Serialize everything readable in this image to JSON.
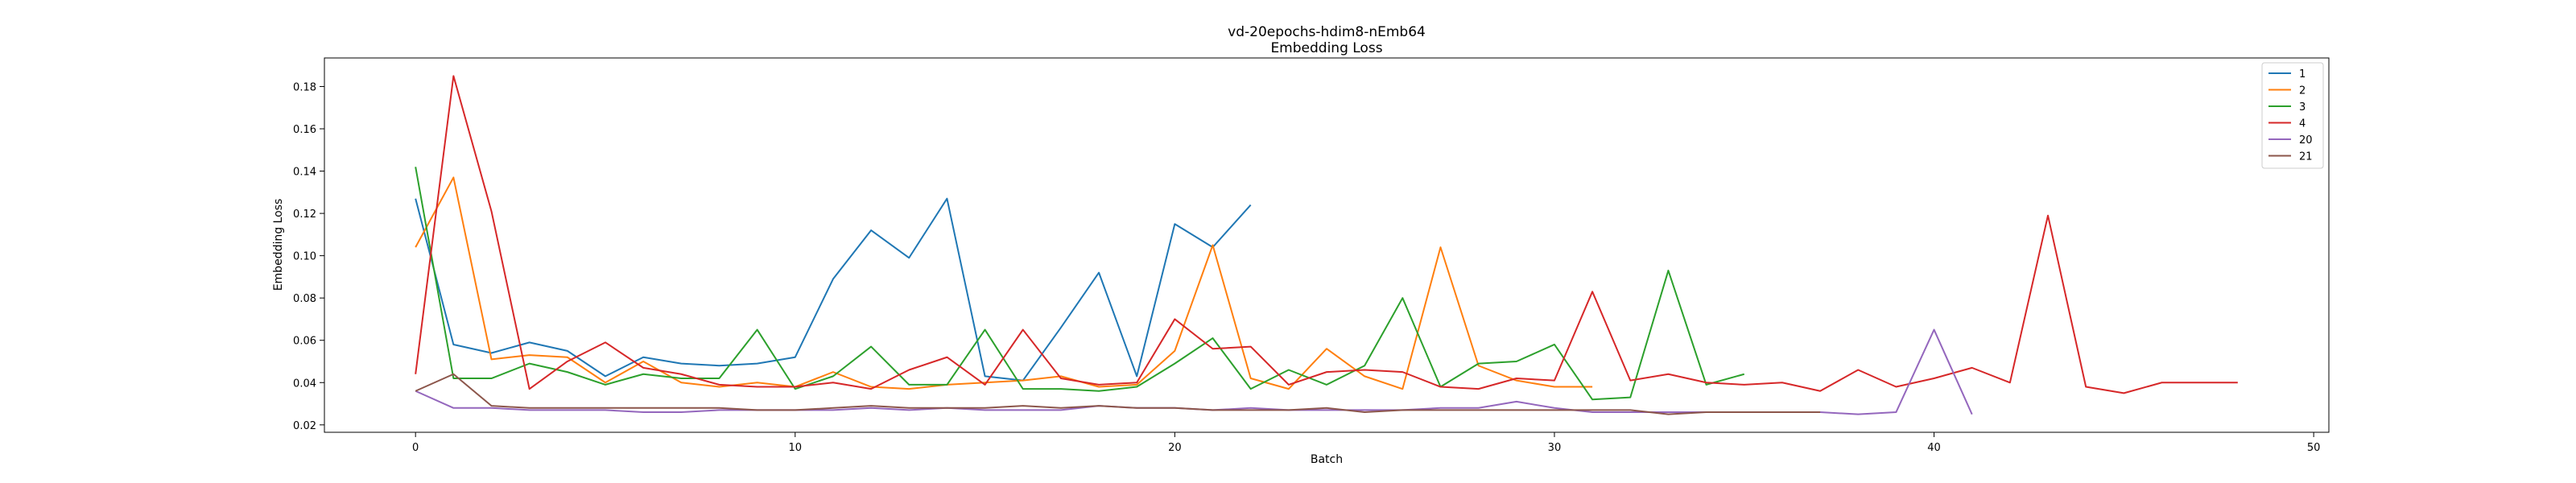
{
  "chart_data": {
    "type": "line",
    "title": "vd-20epochs-hdim8-nEmb64",
    "subtitle": "Embedding Loss",
    "xlabel": "Batch",
    "ylabel": "Embedding Loss",
    "xlim": [
      -2.4,
      50.4
    ],
    "ylim": [
      0.0165,
      0.1935
    ],
    "xticks": [
      0,
      10,
      20,
      30,
      40,
      50
    ],
    "yticks": [
      0.02,
      0.04,
      0.06,
      0.08,
      0.1,
      0.12,
      0.14,
      0.16,
      0.18
    ],
    "ytick_labels": [
      "0.02",
      "0.04",
      "0.06",
      "0.08",
      "0.10",
      "0.12",
      "0.14",
      "0.16",
      "0.18"
    ],
    "grid": false,
    "legend": "top-right",
    "series": [
      {
        "name": "1",
        "color": "#1f77b4",
        "values": [
          0.127,
          0.058,
          0.054,
          0.059,
          0.055,
          0.043,
          0.052,
          0.049,
          0.048,
          0.049,
          0.052,
          0.089,
          0.112,
          0.099,
          0.127,
          0.043,
          0.041,
          0.066,
          0.092,
          0.043,
          0.115,
          0.104,
          0.124
        ]
      },
      {
        "name": "2",
        "color": "#ff7f0e",
        "values": [
          0.104,
          0.137,
          0.051,
          0.053,
          0.052,
          0.04,
          0.05,
          0.04,
          0.038,
          0.04,
          0.038,
          0.045,
          0.038,
          0.037,
          0.039,
          0.04,
          0.041,
          0.043,
          0.038,
          0.039,
          0.055,
          0.105,
          0.042,
          0.037,
          0.056,
          0.043,
          0.037,
          0.104,
          0.048,
          0.041,
          0.038,
          0.038
        ]
      },
      {
        "name": "3",
        "color": "#2ca02c",
        "values": [
          0.142,
          0.042,
          0.042,
          0.049,
          0.045,
          0.039,
          0.044,
          0.042,
          0.042,
          0.065,
          0.037,
          0.043,
          0.057,
          0.039,
          0.039,
          0.065,
          0.037,
          0.037,
          0.036,
          0.038,
          0.049,
          0.061,
          0.037,
          0.046,
          0.039,
          0.048,
          0.08,
          0.038,
          0.049,
          0.05,
          0.058,
          0.032,
          0.033,
          0.093,
          0.039,
          0.044
        ]
      },
      {
        "name": "4",
        "color": "#d62728",
        "values": [
          0.044,
          0.185,
          0.121,
          0.037,
          0.05,
          0.059,
          0.047,
          0.044,
          0.039,
          0.038,
          0.038,
          0.04,
          0.037,
          0.046,
          0.052,
          0.039,
          0.065,
          0.042,
          0.039,
          0.04,
          0.07,
          0.056,
          0.057,
          0.039,
          0.045,
          0.046,
          0.045,
          0.038,
          0.037,
          0.042,
          0.041,
          0.083,
          0.041,
          0.044,
          0.04,
          0.039,
          0.04,
          0.036,
          0.046,
          0.038,
          0.042,
          0.047,
          0.04,
          0.119,
          0.038,
          0.035,
          0.04,
          0.04,
          0.04
        ]
      },
      {
        "name": "20",
        "color": "#9467bd",
        "values": [
          0.036,
          0.028,
          0.028,
          0.027,
          0.027,
          0.027,
          0.026,
          0.026,
          0.027,
          0.027,
          0.027,
          0.027,
          0.028,
          0.027,
          0.028,
          0.027,
          0.027,
          0.027,
          0.029,
          0.028,
          0.028,
          0.027,
          0.028,
          0.027,
          0.027,
          0.027,
          0.027,
          0.028,
          0.028,
          0.031,
          0.028,
          0.026,
          0.026,
          0.026,
          0.026,
          0.026,
          0.026,
          0.026,
          0.025,
          0.026,
          0.065,
          0.025
        ]
      },
      {
        "name": "21",
        "color": "#8c564b",
        "values": [
          0.036,
          0.044,
          0.029,
          0.028,
          0.028,
          0.028,
          0.028,
          0.028,
          0.028,
          0.027,
          0.027,
          0.028,
          0.029,
          0.028,
          0.028,
          0.028,
          0.029,
          0.028,
          0.029,
          0.028,
          0.028,
          0.027,
          0.027,
          0.027,
          0.028,
          0.026,
          0.027,
          0.027,
          0.027,
          0.027,
          0.027,
          0.027,
          0.027,
          0.025,
          0.026,
          0.026,
          0.026,
          0.026
        ]
      }
    ]
  }
}
